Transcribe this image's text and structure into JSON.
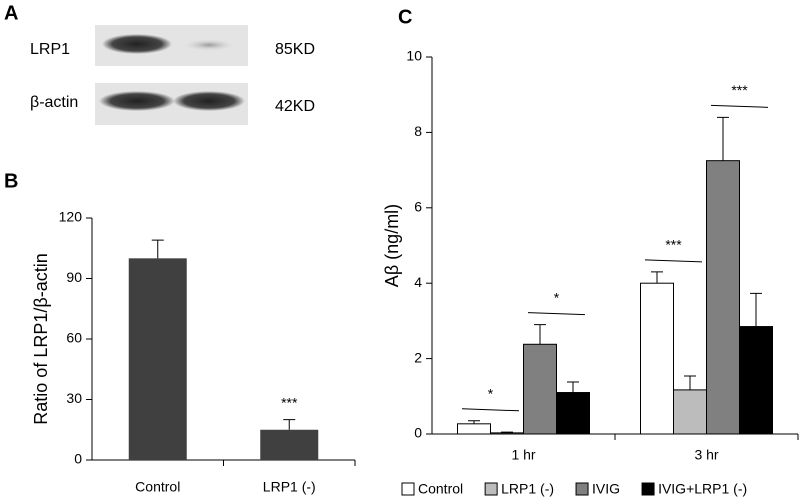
{
  "blot": {
    "panel_label": "A",
    "rows": [
      {
        "label": "LRP1",
        "size": "85KD"
      },
      {
        "label": "β-actin",
        "size": "42KD"
      }
    ]
  },
  "chart_data": [
    {
      "panel_label": "B",
      "type": "bar",
      "ylabel": "Ratio of LRP1/β-actin",
      "categories": [
        "Control",
        "LRP1 (-)"
      ],
      "values": [
        100,
        15
      ],
      "errors": [
        9,
        5
      ],
      "color": "#404040",
      "ylim": [
        0,
        120
      ],
      "yticks": [
        0,
        30,
        60,
        90,
        120
      ],
      "annotations": [
        "***"
      ]
    },
    {
      "panel_label": "C",
      "type": "grouped_bar",
      "ylabel": "Aβ  (ng/ml)",
      "categories": [
        "1 hr",
        "3 hr"
      ],
      "series": [
        {
          "name": "Control",
          "color": "#ffffff",
          "values": [
            0.27,
            4.0
          ],
          "errors": [
            0.08,
            0.3
          ]
        },
        {
          "name": "LRP1 (-)",
          "color": "#bcbcbc",
          "values": [
            0.03,
            1.17
          ],
          "errors": [
            0.02,
            0.37
          ]
        },
        {
          "name": "IVIG",
          "color": "#808080",
          "values": [
            2.38,
            7.25
          ],
          "errors": [
            0.52,
            1.15
          ]
        },
        {
          "name": "IVIG+LRP1 (-)",
          "color": "#000000",
          "values": [
            1.1,
            2.85
          ],
          "errors": [
            0.28,
            0.88
          ]
        }
      ],
      "ylim": [
        0,
        10
      ],
      "yticks": [
        0,
        2,
        4,
        6,
        8,
        10
      ],
      "annotations": [
        "*",
        "*",
        "***",
        "***"
      ]
    }
  ]
}
